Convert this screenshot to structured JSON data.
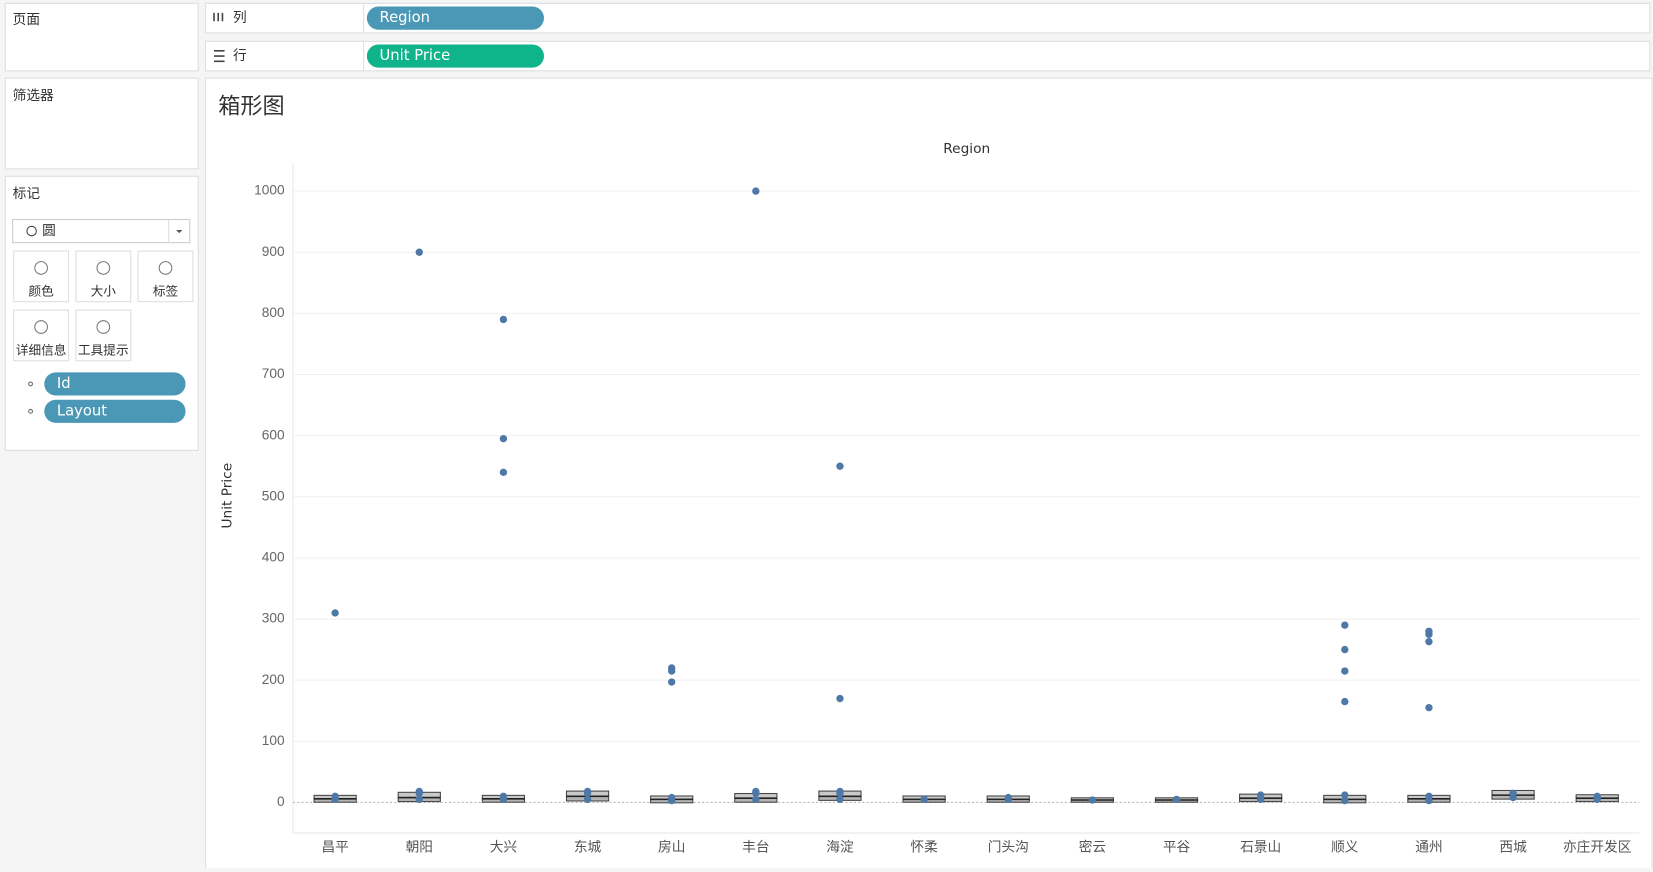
{
  "shelves": {
    "pages": "页面",
    "filters": "筛选器",
    "marks": "标记",
    "mark_type": "圆",
    "buttons": [
      "颜色",
      "大小",
      "标签",
      "详细信息",
      "工具提示"
    ],
    "detail_fields": [
      "Id",
      "Layout"
    ],
    "columns_label": "列",
    "rows_label": "行",
    "columns_field": "Region",
    "rows_field": "Unit Price"
  },
  "chart_data": {
    "type": "box",
    "title": "箱形图",
    "x_label": "Region",
    "y_label": "Unit Price",
    "categories": [
      "昌平",
      "朝阳",
      "大兴",
      "东城",
      "房山",
      "丰台",
      "海淀",
      "怀柔",
      "门头沟",
      "密云",
      "平谷",
      "石景山",
      "顺义",
      "通州",
      "西城",
      "亦庄开发区"
    ],
    "boxes": [
      {
        "q1": 3,
        "median": 6,
        "q3": 9,
        "points": [
          310,
          10,
          5
        ]
      },
      {
        "q1": 4,
        "median": 8,
        "q3": 14,
        "points": [
          900,
          18,
          15,
          5
        ]
      },
      {
        "q1": 3,
        "median": 6,
        "q3": 9,
        "points": [
          790,
          595,
          540,
          10,
          5
        ]
      },
      {
        "q1": 5,
        "median": 10,
        "q3": 16,
        "points": [
          18,
          15,
          5
        ]
      },
      {
        "q1": 2,
        "median": 5,
        "q3": 8,
        "points": [
          220,
          215,
          197,
          8,
          3
        ]
      },
      {
        "q1": 3,
        "median": 7,
        "q3": 12,
        "points": [
          1000,
          18,
          15,
          5
        ]
      },
      {
        "q1": 6,
        "median": 10,
        "q3": 16,
        "points": [
          550,
          170,
          18,
          15,
          5
        ]
      },
      {
        "q1": 3,
        "median": 5,
        "q3": 8,
        "points": [
          5
        ]
      },
      {
        "q1": 3,
        "median": 5,
        "q3": 8,
        "points": [
          8,
          5
        ]
      },
      {
        "q1": 3,
        "median": 4,
        "q3": 5,
        "points": [
          4
        ]
      },
      {
        "q1": 3,
        "median": 4,
        "q3": 5,
        "points": [
          5
        ]
      },
      {
        "q1": 4,
        "median": 7,
        "q3": 11,
        "points": [
          12,
          5
        ]
      },
      {
        "q1": 2,
        "median": 5,
        "q3": 9,
        "points": [
          290,
          250,
          215,
          165,
          12,
          3
        ]
      },
      {
        "q1": 3,
        "median": 6,
        "q3": 9,
        "points": [
          280,
          275,
          263,
          155,
          10,
          3
        ]
      },
      {
        "q1": 8,
        "median": 12,
        "q3": 17,
        "points": [
          15,
          8
        ]
      },
      {
        "q1": 4,
        "median": 7,
        "q3": 10,
        "points": [
          10,
          5
        ]
      }
    ],
    "color": "#4e79a7",
    "ylim": [
      -50,
      1045
    ],
    "yticks": [
      0,
      100,
      200,
      300,
      400,
      500,
      600,
      700,
      800,
      900,
      1000
    ],
    "grid": true
  }
}
